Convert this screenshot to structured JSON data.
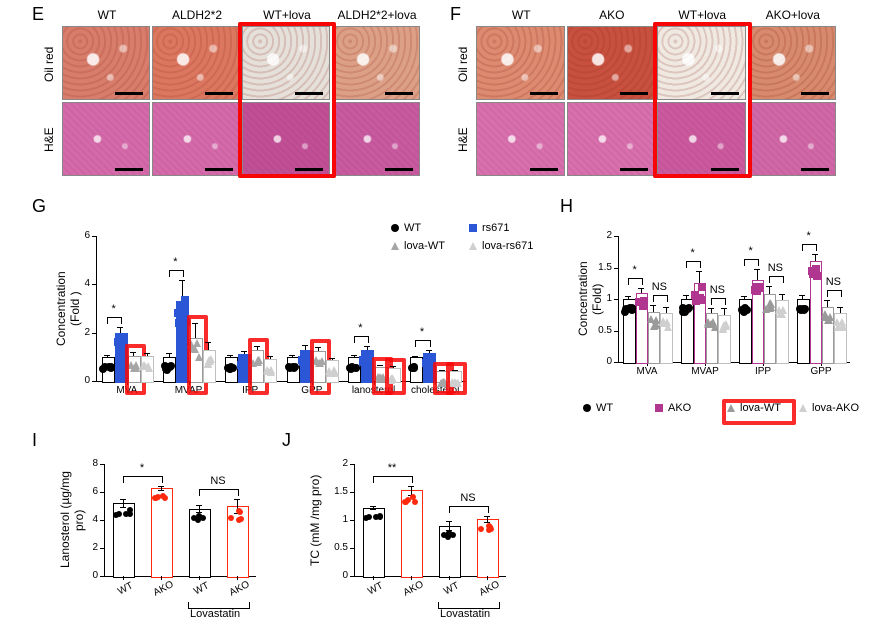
{
  "labels": {
    "E": "E",
    "F": "F",
    "G": "G",
    "H": "H",
    "I": "I",
    "J": "J"
  },
  "E": {
    "rows": [
      "Oil red",
      "H&E"
    ],
    "cols": [
      "WT",
      "ALDH2*2",
      "WT+lova",
      "ALDH2*2+lova"
    ],
    "oil_colors": [
      "#d87d6b",
      "#dc775f",
      "#e6e0da",
      "#dca087"
    ],
    "he_colors": [
      "#d46aa9",
      "#d46aa9",
      "#c14f96",
      "#c85aa0"
    ],
    "highlight_col": 2
  },
  "F": {
    "rows": [
      "Oil red",
      "H&E"
    ],
    "cols": [
      "WT",
      "AKO",
      "WT+lova",
      "AKO+lova"
    ],
    "oil_colors": [
      "#dc8a70",
      "#c8503e",
      "#efe9e2",
      "#d78a6d"
    ],
    "he_colors": [
      "#d870ad",
      "#d870ad",
      "#ca5a9d",
      "#d067a6"
    ],
    "highlight_col": 2
  },
  "G": {
    "ylabel": "Concentration (Fold )",
    "ymax": 6,
    "ytick": 2,
    "cats": [
      "MVA",
      "MVAP",
      "IPP",
      "GPP",
      "lanosterol",
      "cholesterol"
    ],
    "series": [
      {
        "name": "WT",
        "marker": "circle",
        "fill": "#000000",
        "barFill": "#ffffff",
        "barStroke": "#000000"
      },
      {
        "name": "rs671",
        "marker": "square",
        "fill": "#2b57d6",
        "barFill": "#2b57d6",
        "barStroke": "#2b57d6"
      },
      {
        "name": "lova-WT",
        "marker": "triangle",
        "fill": "#a6a6a6",
        "barFill": "#ffffff",
        "barStroke": "#9a9a9a"
      },
      {
        "name": "lova-rs671",
        "marker": "triangle",
        "fill": "#cfcfcf",
        "barFill": "#ffffff",
        "barStroke": "#bfbfbf"
      }
    ],
    "values": [
      [
        1.0,
        2.0,
        1.05,
        1.05
      ],
      [
        1.0,
        3.3,
        1.8,
        1.3
      ],
      [
        1.0,
        1.1,
        1.3,
        0.9
      ],
      [
        1.0,
        1.3,
        1.25,
        0.85
      ],
      [
        1.0,
        1.3,
        0.6,
        0.55
      ],
      [
        1.0,
        1.15,
        0.4,
        0.4
      ]
    ],
    "err": [
      [
        0.08,
        0.25,
        0.15,
        0.12
      ],
      [
        0.15,
        0.9,
        0.6,
        0.3
      ],
      [
        0.07,
        0.15,
        0.15,
        0.12
      ],
      [
        0.09,
        0.2,
        0.15,
        0.12
      ],
      [
        0.06,
        0.15,
        0.07,
        0.07
      ],
      [
        0.05,
        0.12,
        0.06,
        0.06
      ]
    ],
    "sig": [
      [
        "*",
        0,
        0,
        1
      ],
      [
        "*",
        1,
        0,
        1
      ],
      [
        "*",
        4,
        0,
        1
      ],
      [
        "*",
        5,
        0,
        1
      ]
    ],
    "boxedSeriesCols": [
      [
        0,
        2
      ],
      [
        1,
        2
      ],
      [
        2,
        2
      ],
      [
        3,
        2
      ],
      [
        4,
        2
      ],
      [
        4,
        3
      ],
      [
        5,
        2
      ],
      [
        5,
        3
      ]
    ]
  },
  "H": {
    "ylabel": "Concentration (Fold)",
    "ymax": 2.0,
    "ytick": 0.5,
    "cats": [
      "MVA",
      "MVAP",
      "IPP",
      "GPP"
    ],
    "series": [
      {
        "name": "WT",
        "marker": "circle",
        "fill": "#000000",
        "barFill": "#ffffff",
        "barStroke": "#000000"
      },
      {
        "name": "AKO",
        "marker": "square",
        "fill": "#b03690",
        "barFill": "#ffffff",
        "barStroke": "#b03690"
      },
      {
        "name": "lova-WT",
        "marker": "triangle",
        "fill": "#9a9a9a",
        "barFill": "#ffffff",
        "barStroke": "#9a9a9a"
      },
      {
        "name": "lova-AKO",
        "marker": "triangle",
        "fill": "#cfcfcf",
        "barFill": "#ffffff",
        "barStroke": "#bfbfbf"
      }
    ],
    "values": [
      [
        1.0,
        1.1,
        0.8,
        0.78
      ],
      [
        1.0,
        1.25,
        0.78,
        0.75
      ],
      [
        1.0,
        1.3,
        1.08,
        0.98
      ],
      [
        1.0,
        1.6,
        0.88,
        0.78
      ]
    ],
    "err": [
      [
        0.05,
        0.08,
        0.1,
        0.1
      ],
      [
        0.07,
        0.2,
        0.08,
        0.1
      ],
      [
        0.05,
        0.18,
        0.12,
        0.1
      ],
      [
        0.06,
        0.12,
        0.1,
        0.1
      ]
    ],
    "sig": [
      [
        "*",
        0,
        0,
        1
      ],
      [
        "NS",
        0,
        2,
        3
      ],
      [
        "*",
        1,
        0,
        1
      ],
      [
        "NS",
        1,
        2,
        3
      ],
      [
        "*",
        2,
        0,
        1
      ],
      [
        "NS",
        2,
        2,
        3
      ],
      [
        "*",
        3,
        0,
        1
      ],
      [
        "NS",
        3,
        2,
        3
      ]
    ],
    "legend_highlight": 2
  },
  "I": {
    "ylabel": "Lanosterol (µg/mg pro)",
    "ymax": 8,
    "ytick": 2,
    "groups": [
      "WT",
      "AKO",
      "WT",
      "AKO"
    ],
    "bracket_label": "Lovastatin",
    "colors": [
      "#000000",
      "#ff2a0e",
      "#000000",
      "#ff2a0e"
    ],
    "values": [
      5.2,
      6.3,
      4.8,
      5.0
    ],
    "err": [
      0.3,
      0.15,
      0.25,
      0.5
    ],
    "sig": [
      [
        "*",
        0,
        1
      ],
      [
        "NS",
        2,
        3
      ]
    ]
  },
  "J": {
    "ylabel": "TC (mM /mg pro)",
    "ymax": 2.0,
    "ytick": 0.5,
    "groups": [
      "WT",
      "AKO",
      "WT",
      "AKO"
    ],
    "bracket_label": "Lovastatin",
    "colors": [
      "#000000",
      "#ff2a0e",
      "#000000",
      "#ff2a0e"
    ],
    "values": [
      1.22,
      1.53,
      0.9,
      1.02
    ],
    "err": [
      0.03,
      0.08,
      0.08,
      0.05
    ],
    "sig": [
      [
        "**",
        0,
        1
      ],
      [
        "NS",
        2,
        3
      ]
    ]
  }
}
